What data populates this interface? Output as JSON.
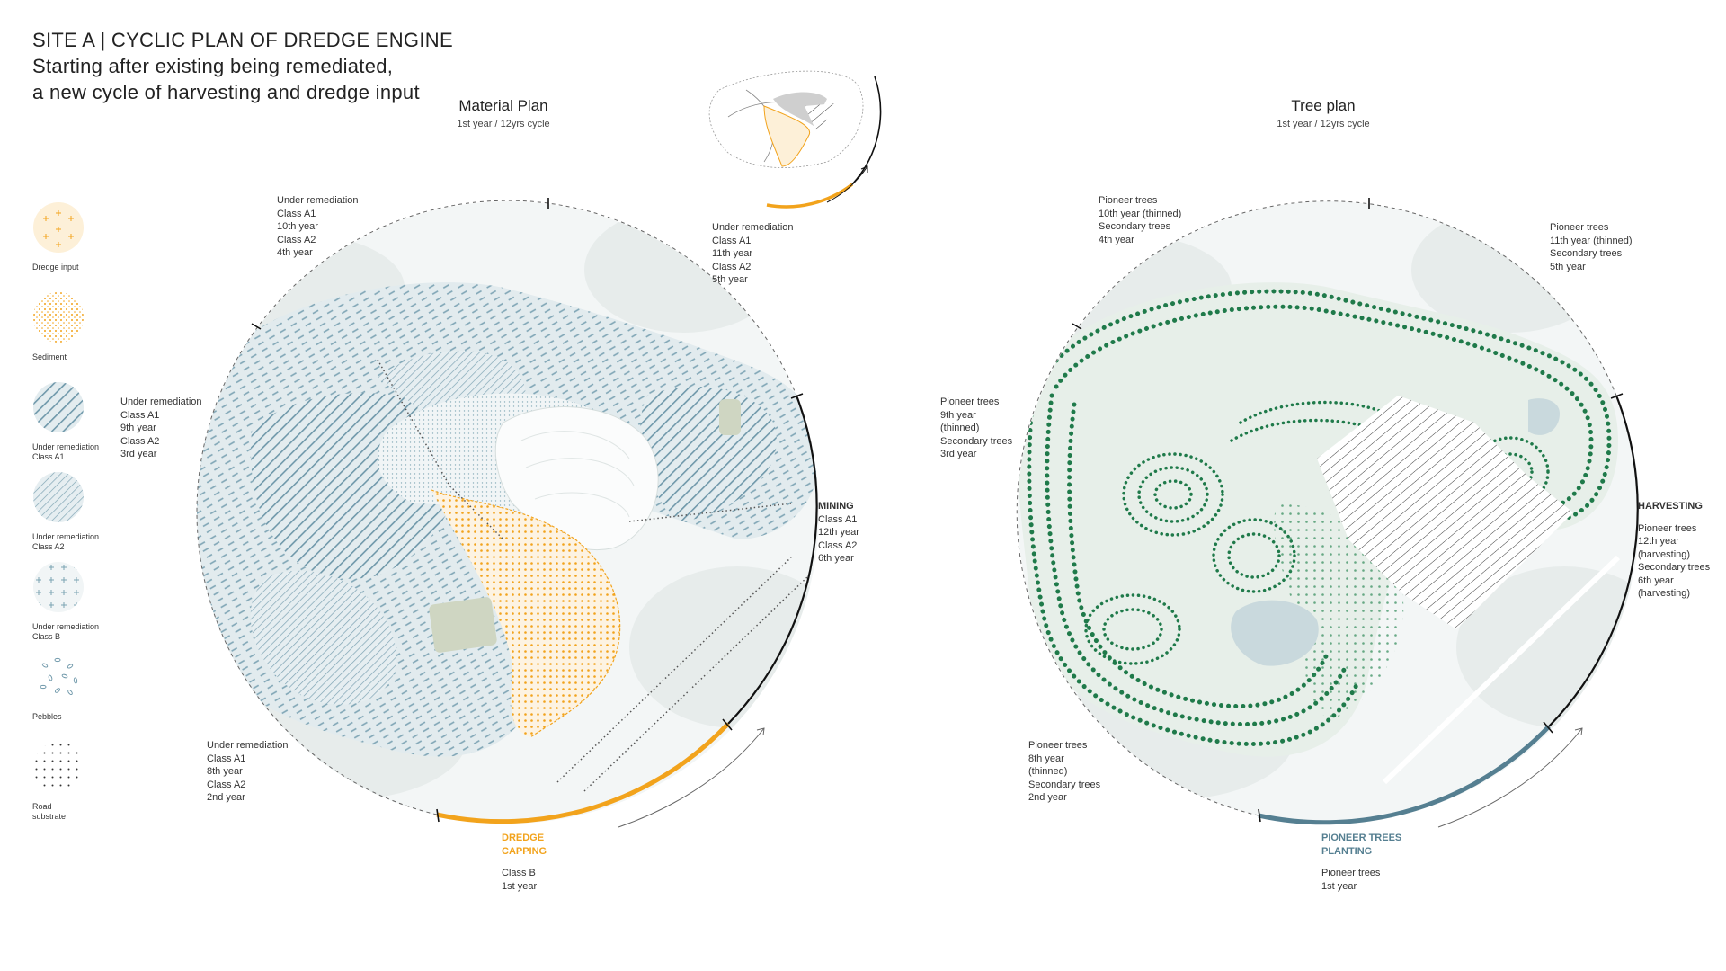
{
  "title": {
    "line1": "SITE A | CYCLIC PLAN OF DREDGE ENGINE",
    "line2": "Starting after existing being remediated,",
    "line3": "a new cycle of harvesting and dredge input"
  },
  "material_plan": {
    "title": "Material Plan",
    "subtitle": "1st year / 12yrs cycle",
    "labels": {
      "top_left": [
        "Under remediation",
        "Class A1",
        "10th year",
        "Class A2",
        "4th year"
      ],
      "top_right": [
        "Under remediation",
        "Class A1",
        "11th year",
        "Class A2",
        "5th year"
      ],
      "left": [
        "Under remediation",
        "Class A1",
        "9th year",
        "Class A2",
        "3rd year"
      ],
      "bottom_left": [
        "Under remediation",
        "Class A1",
        "8th year",
        "Class A2",
        "2nd year"
      ],
      "right_head": "MINING",
      "right": [
        "Class A1",
        "12th year",
        "Class A2",
        "6th year"
      ],
      "bottom_head": [
        "DREDGE",
        "CAPPING"
      ],
      "bottom": [
        "Class B",
        "1st year"
      ]
    }
  },
  "tree_plan": {
    "title": "Tree plan",
    "subtitle": "1st year / 12yrs cycle",
    "labels": {
      "top_left": [
        "Pioneer trees",
        "10th year (thinned)",
        "Secondary trees",
        "4th year"
      ],
      "top_right": [
        "Pioneer trees",
        "11th year (thinned)",
        "Secondary trees",
        "5th year"
      ],
      "left": [
        "Pioneer trees",
        "9th year",
        "(thinned)",
        "Secondary trees",
        "3rd year"
      ],
      "bottom_left": [
        "Pioneer trees",
        "8th year",
        "(thinned)",
        "Secondary trees",
        "2nd year"
      ],
      "right_head": "HARVESTING",
      "right": [
        "Pioneer trees",
        "12th year",
        "(harvesting)",
        "Secondary trees",
        "6th year",
        "(harvesting)"
      ],
      "bottom_head": [
        "PIONEER TREES",
        "PLANTING"
      ],
      "bottom": [
        "Pioneer trees",
        "1st year"
      ]
    }
  },
  "legend": [
    {
      "name": "dredge-input",
      "label": [
        "Dredge input"
      ]
    },
    {
      "name": "sediment",
      "label": [
        "Sediment"
      ]
    },
    {
      "name": "under-remediation-a1",
      "label": [
        "Under remediation",
        "Class A1"
      ]
    },
    {
      "name": "under-remediation-a2",
      "label": [
        "Under remediation",
        "Class A2"
      ]
    },
    {
      "name": "under-remediation-b",
      "label": [
        "Under remediation",
        "Class B"
      ]
    },
    {
      "name": "pebbles",
      "label": [
        "Pebbles"
      ]
    },
    {
      "name": "road-substrate",
      "label": [
        "Road",
        "substrate"
      ]
    }
  ],
  "colors": {
    "orange": "#f2a31c",
    "teal": "#5a8ea0",
    "blue_hatch": "#6f98aa",
    "green": "#1f7a4a",
    "steel": "#557f91"
  }
}
